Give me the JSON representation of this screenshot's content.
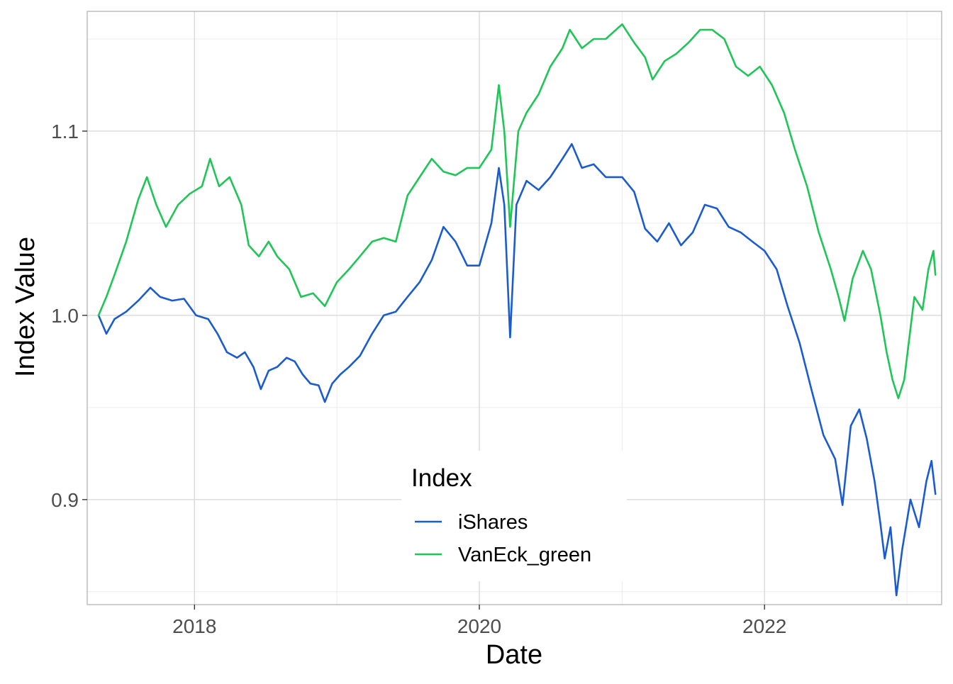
{
  "chart_data": {
    "type": "line",
    "xlabel": "Date",
    "ylabel": "Index Value",
    "x_tick_labels": [
      "2018",
      "2020",
      "2022"
    ],
    "y_tick_labels": [
      "0.9",
      "1.0",
      "1.1"
    ],
    "xlim": [
      "2017-04-01",
      "2023-03-31"
    ],
    "ylim": [
      0.843,
      1.165
    ],
    "grid": true,
    "legend": {
      "title": "Index",
      "position": "inside-bottom-center"
    },
    "series": [
      {
        "name": "iShares",
        "color": "#1a5ccf",
        "points": [
          [
            "2017-04-30",
            1.0
          ],
          [
            "2017-05-20",
            0.99
          ],
          [
            "2017-06-10",
            0.998
          ],
          [
            "2017-07-10",
            1.002
          ],
          [
            "2017-08-10",
            1.008
          ],
          [
            "2017-09-10",
            1.015
          ],
          [
            "2017-10-05",
            1.01
          ],
          [
            "2017-11-05",
            1.008
          ],
          [
            "2017-12-05",
            1.009
          ],
          [
            "2018-01-05",
            1.0
          ],
          [
            "2018-02-05",
            0.998
          ],
          [
            "2018-03-01",
            0.99
          ],
          [
            "2018-03-25",
            0.98
          ],
          [
            "2018-04-20",
            0.977
          ],
          [
            "2018-05-10",
            0.98
          ],
          [
            "2018-06-01",
            0.972
          ],
          [
            "2018-06-20",
            0.96
          ],
          [
            "2018-07-10",
            0.97
          ],
          [
            "2018-08-01",
            0.972
          ],
          [
            "2018-08-25",
            0.977
          ],
          [
            "2018-09-15",
            0.975
          ],
          [
            "2018-10-05",
            0.968
          ],
          [
            "2018-10-25",
            0.963
          ],
          [
            "2018-11-15",
            0.962
          ],
          [
            "2018-12-01",
            0.953
          ],
          [
            "2018-12-20",
            0.963
          ],
          [
            "2019-01-10",
            0.968
          ],
          [
            "2019-02-01",
            0.972
          ],
          [
            "2019-03-01",
            0.978
          ],
          [
            "2019-04-01",
            0.99
          ],
          [
            "2019-05-01",
            1.0
          ],
          [
            "2019-06-01",
            1.002
          ],
          [
            "2019-07-01",
            1.01
          ],
          [
            "2019-08-01",
            1.018
          ],
          [
            "2019-09-01",
            1.03
          ],
          [
            "2019-10-01",
            1.048
          ],
          [
            "2019-11-01",
            1.04
          ],
          [
            "2019-12-01",
            1.027
          ],
          [
            "2020-01-01",
            1.027
          ],
          [
            "2020-02-01",
            1.05
          ],
          [
            "2020-02-20",
            1.08
          ],
          [
            "2020-03-05",
            1.06
          ],
          [
            "2020-03-20",
            0.988
          ],
          [
            "2020-04-05",
            1.06
          ],
          [
            "2020-05-01",
            1.073
          ],
          [
            "2020-06-01",
            1.068
          ],
          [
            "2020-07-01",
            1.075
          ],
          [
            "2020-08-01",
            1.085
          ],
          [
            "2020-08-25",
            1.093
          ],
          [
            "2020-09-20",
            1.08
          ],
          [
            "2020-10-20",
            1.082
          ],
          [
            "2020-11-20",
            1.075
          ],
          [
            "2021-01-01",
            1.075
          ],
          [
            "2021-02-01",
            1.067
          ],
          [
            "2021-03-01",
            1.047
          ],
          [
            "2021-04-01",
            1.04
          ],
          [
            "2021-05-01",
            1.05
          ],
          [
            "2021-06-01",
            1.038
          ],
          [
            "2021-07-01",
            1.045
          ],
          [
            "2021-08-01",
            1.06
          ],
          [
            "2021-09-01",
            1.058
          ],
          [
            "2021-10-01",
            1.048
          ],
          [
            "2021-11-01",
            1.045
          ],
          [
            "2021-12-01",
            1.04
          ],
          [
            "2022-01-01",
            1.035
          ],
          [
            "2022-02-01",
            1.025
          ],
          [
            "2022-03-01",
            1.005
          ],
          [
            "2022-04-01",
            0.985
          ],
          [
            "2022-05-01",
            0.96
          ],
          [
            "2022-06-01",
            0.935
          ],
          [
            "2022-07-01",
            0.922
          ],
          [
            "2022-07-20",
            0.897
          ],
          [
            "2022-08-10",
            0.94
          ],
          [
            "2022-09-01",
            0.949
          ],
          [
            "2022-09-20",
            0.933
          ],
          [
            "2022-10-10",
            0.91
          ],
          [
            "2022-10-25",
            0.887
          ],
          [
            "2022-11-05",
            0.868
          ],
          [
            "2022-11-20",
            0.885
          ],
          [
            "2022-12-05",
            0.848
          ],
          [
            "2022-12-20",
            0.873
          ],
          [
            "2023-01-10",
            0.9
          ],
          [
            "2023-02-01",
            0.885
          ],
          [
            "2023-02-20",
            0.91
          ],
          [
            "2023-03-05",
            0.921
          ],
          [
            "2023-03-15",
            0.903
          ]
        ]
      },
      {
        "name": "VanEck_green",
        "color": "#1fc557",
        "points": [
          [
            "2017-04-30",
            1.0
          ],
          [
            "2017-05-20",
            1.01
          ],
          [
            "2017-06-10",
            1.022
          ],
          [
            "2017-07-10",
            1.04
          ],
          [
            "2017-08-10",
            1.063
          ],
          [
            "2017-09-01",
            1.075
          ],
          [
            "2017-09-25",
            1.06
          ],
          [
            "2017-10-20",
            1.048
          ],
          [
            "2017-11-20",
            1.06
          ],
          [
            "2017-12-20",
            1.066
          ],
          [
            "2018-01-20",
            1.07
          ],
          [
            "2018-02-10",
            1.085
          ],
          [
            "2018-03-05",
            1.07
          ],
          [
            "2018-04-01",
            1.075
          ],
          [
            "2018-05-01",
            1.06
          ],
          [
            "2018-05-20",
            1.038
          ],
          [
            "2018-06-15",
            1.032
          ],
          [
            "2018-07-10",
            1.04
          ],
          [
            "2018-08-01",
            1.032
          ],
          [
            "2018-09-01",
            1.025
          ],
          [
            "2018-10-01",
            1.01
          ],
          [
            "2018-11-01",
            1.012
          ],
          [
            "2018-12-01",
            1.005
          ],
          [
            "2019-01-01",
            1.018
          ],
          [
            "2019-02-01",
            1.025
          ],
          [
            "2019-03-01",
            1.032
          ],
          [
            "2019-04-01",
            1.04
          ],
          [
            "2019-05-01",
            1.042
          ],
          [
            "2019-06-01",
            1.04
          ],
          [
            "2019-07-01",
            1.065
          ],
          [
            "2019-08-01",
            1.075
          ],
          [
            "2019-09-01",
            1.085
          ],
          [
            "2019-10-01",
            1.078
          ],
          [
            "2019-11-01",
            1.076
          ],
          [
            "2019-12-01",
            1.08
          ],
          [
            "2020-01-01",
            1.08
          ],
          [
            "2020-02-01",
            1.09
          ],
          [
            "2020-02-20",
            1.125
          ],
          [
            "2020-03-05",
            1.1
          ],
          [
            "2020-03-20",
            1.048
          ],
          [
            "2020-04-10",
            1.1
          ],
          [
            "2020-05-01",
            1.11
          ],
          [
            "2020-06-01",
            1.12
          ],
          [
            "2020-07-01",
            1.135
          ],
          [
            "2020-08-01",
            1.145
          ],
          [
            "2020-08-20",
            1.155
          ],
          [
            "2020-09-20",
            1.145
          ],
          [
            "2020-10-20",
            1.15
          ],
          [
            "2020-11-20",
            1.15
          ],
          [
            "2021-01-01",
            1.158
          ],
          [
            "2021-02-01",
            1.148
          ],
          [
            "2021-03-01",
            1.14
          ],
          [
            "2021-03-20",
            1.128
          ],
          [
            "2021-04-20",
            1.138
          ],
          [
            "2021-05-20",
            1.142
          ],
          [
            "2021-06-20",
            1.148
          ],
          [
            "2021-07-20",
            1.155
          ],
          [
            "2021-08-20",
            1.155
          ],
          [
            "2021-09-20",
            1.15
          ],
          [
            "2021-10-20",
            1.135
          ],
          [
            "2021-11-20",
            1.13
          ],
          [
            "2021-12-20",
            1.135
          ],
          [
            "2022-01-20",
            1.125
          ],
          [
            "2022-02-20",
            1.11
          ],
          [
            "2022-03-20",
            1.09
          ],
          [
            "2022-04-20",
            1.07
          ],
          [
            "2022-05-20",
            1.045
          ],
          [
            "2022-06-20",
            1.025
          ],
          [
            "2022-07-10",
            1.01
          ],
          [
            "2022-07-25",
            0.997
          ],
          [
            "2022-08-15",
            1.02
          ],
          [
            "2022-09-10",
            1.035
          ],
          [
            "2022-10-01",
            1.025
          ],
          [
            "2022-10-25",
            1.0
          ],
          [
            "2022-11-10",
            0.98
          ],
          [
            "2022-11-25",
            0.965
          ],
          [
            "2022-12-10",
            0.955
          ],
          [
            "2022-12-25",
            0.965
          ],
          [
            "2023-01-20",
            1.01
          ],
          [
            "2023-02-10",
            1.003
          ],
          [
            "2023-02-25",
            1.025
          ],
          [
            "2023-03-10",
            1.035
          ],
          [
            "2023-03-15",
            1.022
          ]
        ]
      }
    ]
  }
}
